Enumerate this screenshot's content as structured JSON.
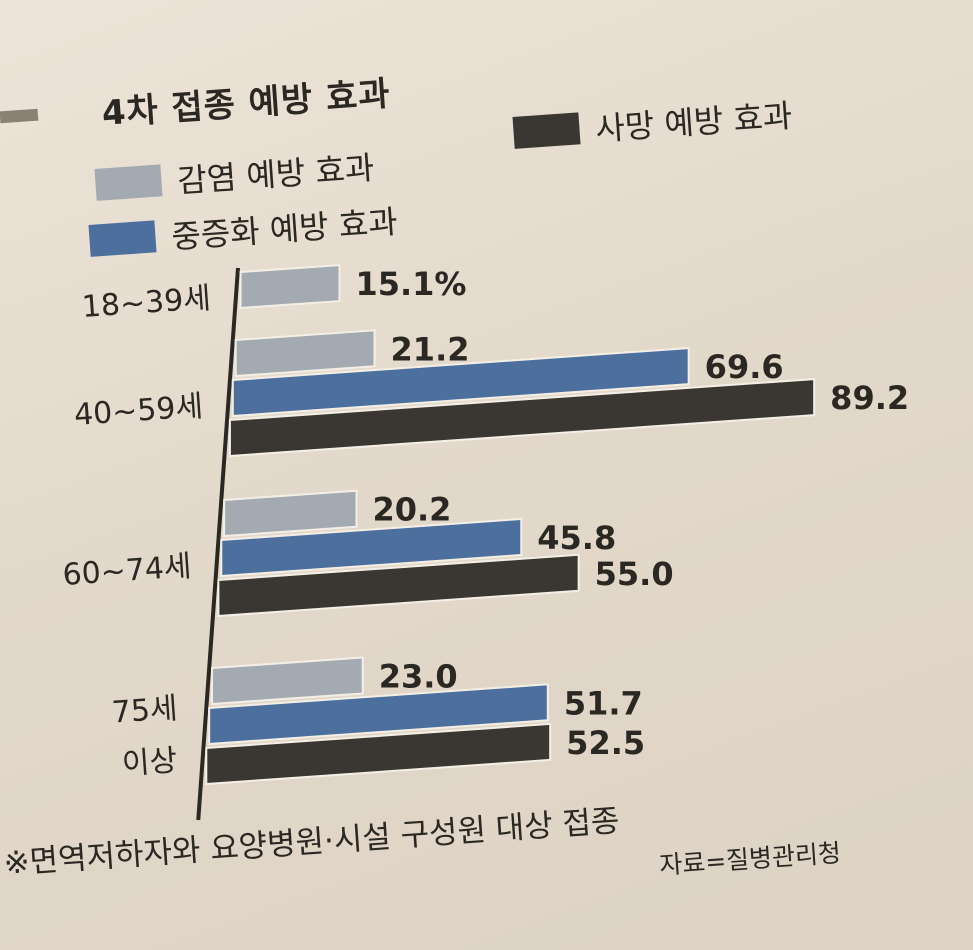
{
  "legend": {
    "title": "4차 접종 예방 효과",
    "items": [
      {
        "label": "감염 예방 효과",
        "color": "#a3aab1"
      },
      {
        "label": "중증화 예방 효과",
        "color": "#4d6f9e"
      },
      {
        "label": "사망 예방 효과",
        "color": "#3a3632"
      }
    ]
  },
  "chart_data": {
    "type": "bar",
    "orientation": "horizontal",
    "title": "4차 접종 예방 효과",
    "categories": [
      "18~39세",
      "40~59세",
      "60~74세",
      "75세 이상"
    ],
    "category_lines": [
      [
        "18~39세"
      ],
      [
        "40~59세"
      ],
      [
        "60~74세"
      ],
      [
        "75세",
        "이상"
      ]
    ],
    "series": [
      {
        "name": "감염 예방 효과",
        "color": "#a3aab1",
        "values": [
          15.1,
          21.2,
          20.2,
          23.0
        ],
        "labels": [
          "15.1%",
          "21.2",
          "20.2",
          "23.0"
        ]
      },
      {
        "name": "중증화 예방 효과",
        "color": "#4d6f9e",
        "values": [
          null,
          69.6,
          45.8,
          51.7
        ],
        "labels": [
          "",
          "69.6",
          "45.8",
          "51.7"
        ]
      },
      {
        "name": "사망 예방 효과",
        "color": "#3a3632",
        "values": [
          null,
          89.2,
          55.0,
          52.5
        ],
        "labels": [
          "",
          "89.2",
          "55.0",
          "52.5"
        ]
      }
    ],
    "xlim": [
      0,
      100
    ],
    "unit": "%",
    "grid": false,
    "legend_position": "top"
  },
  "footnote": "※면역저하자와 요양병원·시설 구성원 대상 접종",
  "source": "자료=질병관리청"
}
